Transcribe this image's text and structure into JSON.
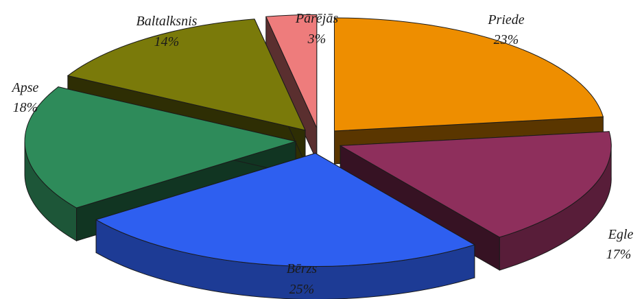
{
  "chart_data": {
    "type": "pie",
    "style": "3d-exploded",
    "title": "",
    "slices": [
      {
        "label": "Priede",
        "value": 23,
        "value_label": "23%",
        "color": "#EE8E00"
      },
      {
        "label": "Egle",
        "value": 17,
        "value_label": "17%",
        "color": "#8E2F5C"
      },
      {
        "label": "Bērzs",
        "value": 25,
        "value_label": "25%",
        "color": "#2E5FF0"
      },
      {
        "label": "Apse",
        "value": 18,
        "value_label": "18%",
        "color": "#2E8B5A"
      },
      {
        "label": "Baltalksnis",
        "value": 14,
        "value_label": "14%",
        "color": "#7A7A0A"
      },
      {
        "label": "Pārējās",
        "value": 3,
        "value_label": "3%",
        "color": "#EE7C7C"
      }
    ]
  }
}
